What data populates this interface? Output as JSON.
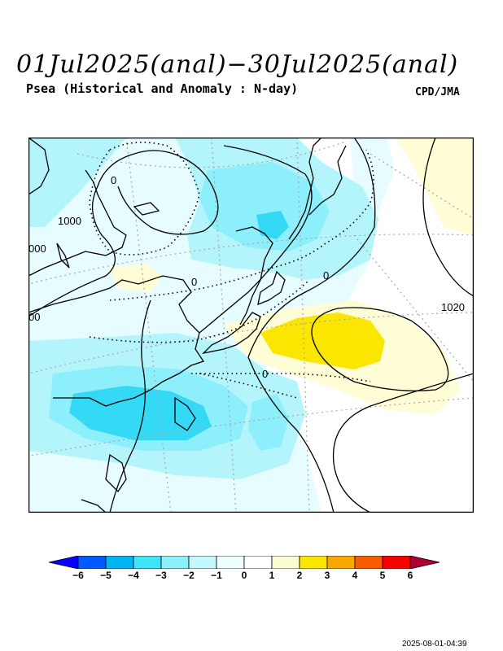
{
  "header": {
    "title": "01Jul2025(anal)−30Jul2025(anal)",
    "subtitle": "Psea (Historical and Anomaly : N-day)",
    "credit": "CPD/JMA"
  },
  "map": {
    "contour_labels": [
      "1000",
      "000",
      "00",
      "1020",
      "0",
      "0",
      "0",
      "0"
    ],
    "colors": {
      "ocean_bg": "#ffffff",
      "anomaly_neg1": "#e6fcff",
      "anomaly_neg2": "#b4f5fb",
      "anomaly_neg3": "#8deffb",
      "anomaly_neg4": "#34d9f6",
      "anomaly_neg5": "#0bbbf5",
      "anomaly_pos1": "#fffdd6",
      "anomaly_pos2": "#fae600"
    }
  },
  "colorbar": {
    "tick_labels": [
      "−6",
      "−5",
      "−4",
      "−3",
      "−2",
      "−1",
      "0",
      "1",
      "2",
      "3",
      "4",
      "5",
      "6"
    ],
    "colors": [
      "#0a00ff",
      "#005aff",
      "#00b6f2",
      "#40e4f6",
      "#8cf0fb",
      "#c4f8fd",
      "#effeff",
      "#ffffff",
      "#fdfdd4",
      "#fae600",
      "#f9a800",
      "#f95c00",
      "#f80000",
      "#b00030"
    ]
  },
  "timestamp": "2025-08-01-04:39"
}
